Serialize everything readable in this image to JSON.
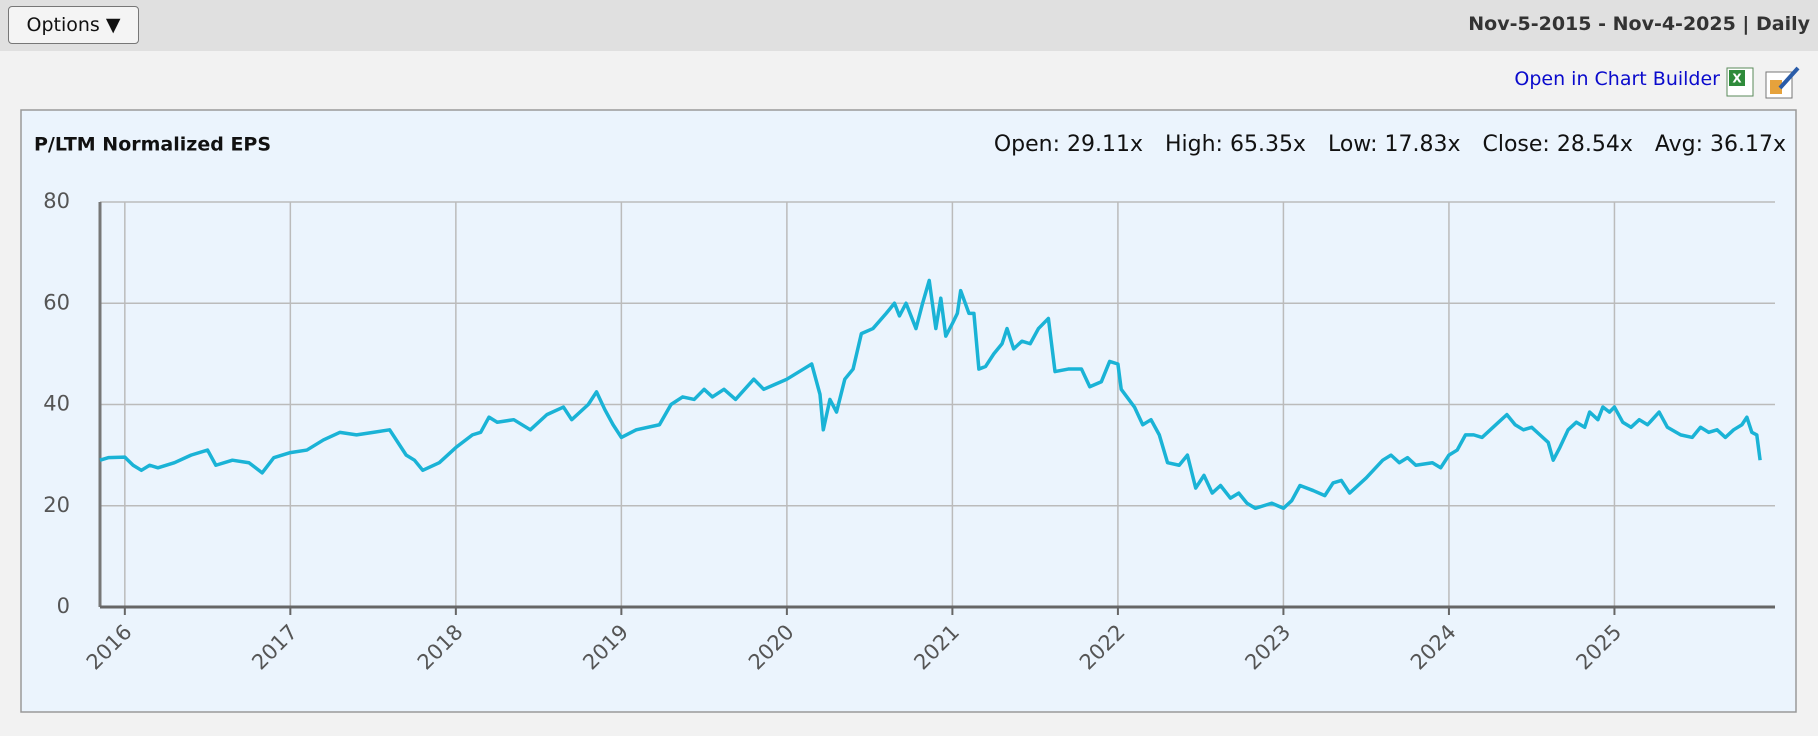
{
  "toolbar": {
    "options": "Options ▼",
    "range": "Nov-5-2015 - Nov-4-2025 | Daily",
    "link": "Open in Chart Builder"
  },
  "chart_data": {
    "type": "line",
    "title": "P/LTM Normalized EPS",
    "stats": [
      "Open: 29.11x",
      "High: 65.35x",
      "Low: 17.83x",
      "Close: 28.54x",
      "Avg: 36.17x"
    ],
    "x": [
      2015.85,
      2015.9,
      2016.0,
      2016.05,
      2016.1,
      2016.15,
      2016.2,
      2016.3,
      2016.4,
      2016.5,
      2016.55,
      2016.65,
      2016.75,
      2016.83,
      2016.9,
      2017.0,
      2017.1,
      2017.2,
      2017.3,
      2017.4,
      2017.5,
      2017.6,
      2017.7,
      2017.75,
      2017.8,
      2017.9,
      2018.0,
      2018.1,
      2018.15,
      2018.2,
      2018.25,
      2018.35,
      2018.45,
      2018.55,
      2018.65,
      2018.7,
      2018.8,
      2018.85,
      2018.9,
      2018.95,
      2019.0,
      2019.09,
      2019.23,
      2019.3,
      2019.37,
      2019.44,
      2019.5,
      2019.55,
      2019.62,
      2019.69,
      2019.8,
      2019.86,
      2019.93,
      2020.0,
      2020.1,
      2020.15,
      2020.2,
      2020.22,
      2020.26,
      2020.3,
      2020.35,
      2020.4,
      2020.45,
      2020.52,
      2020.6,
      2020.65,
      2020.68,
      2020.72,
      2020.78,
      2020.82,
      2020.86,
      2020.9,
      2020.93,
      2020.96,
      2021.0,
      2021.03,
      2021.05,
      2021.1,
      2021.13,
      2021.16,
      2021.2,
      2021.25,
      2021.3,
      2021.33,
      2021.37,
      2021.42,
      2021.47,
      2021.52,
      2021.58,
      2021.62,
      2021.7,
      2021.78,
      2021.83,
      2021.9,
      2021.95,
      2022.0,
      2022.02,
      2022.1,
      2022.15,
      2022.2,
      2022.25,
      2022.3,
      2022.37,
      2022.42,
      2022.47,
      2022.52,
      2022.57,
      2022.62,
      2022.68,
      2022.73,
      2022.78,
      2022.83,
      2022.88,
      2022.93,
      2023.0,
      2023.05,
      2023.1,
      2023.18,
      2023.25,
      2023.3,
      2023.35,
      2023.4,
      2023.5,
      2023.6,
      2023.65,
      2023.7,
      2023.75,
      2023.8,
      2023.9,
      2023.95,
      2024.0,
      2024.05,
      2024.1,
      2024.15,
      2024.2,
      2024.25,
      2024.3,
      2024.35,
      2024.4,
      2024.45,
      2024.5,
      2024.55,
      2024.6,
      2024.63,
      2024.67,
      2024.72,
      2024.77,
      2024.82,
      2024.85,
      2024.9,
      2024.93,
      2024.97,
      2025.0,
      2025.05,
      2025.1,
      2025.15,
      2025.2,
      2025.27,
      2025.32,
      2025.4,
      2025.47,
      2025.52,
      2025.57,
      2025.62,
      2025.67,
      2025.72,
      2025.77,
      2025.8,
      2025.83,
      2025.86,
      2025.88
    ],
    "series": [
      {
        "color": "#1ab3d6",
        "values": [
          29,
          29.5,
          29.6,
          28,
          27,
          28,
          27.5,
          28.5,
          30,
          31,
          28,
          29,
          28.5,
          26.5,
          29.5,
          30.5,
          31,
          33,
          34.5,
          34,
          34.5,
          35,
          30,
          29,
          27,
          28.5,
          31.5,
          34,
          34.5,
          37.5,
          36.5,
          37,
          35,
          38,
          39.5,
          37,
          40,
          42.5,
          39,
          36,
          33.5,
          35,
          36,
          40,
          41.5,
          41,
          43,
          41.5,
          43,
          41,
          45,
          43,
          44,
          45,
          47,
          48,
          42,
          35,
          41,
          38.5,
          45,
          47,
          54,
          55,
          58,
          60,
          57.5,
          60,
          55,
          60,
          64.5,
          55,
          61,
          53.5,
          56,
          58,
          62.5,
          58,
          58,
          47,
          47.5,
          50,
          52,
          55,
          51,
          52.5,
          52,
          55,
          57,
          46.5,
          47,
          47,
          43.5,
          44.5,
          48.5,
          48,
          43,
          39.5,
          36,
          37,
          34,
          28.5,
          28,
          30,
          23.5,
          26,
          22.5,
          24,
          21.5,
          22.5,
          20.5,
          19.5,
          20,
          20.5,
          19.5,
          21,
          24,
          23,
          22,
          24.5,
          25,
          22.5,
          25.5,
          29,
          30,
          28.5,
          29.5,
          28,
          28.5,
          27.5,
          30,
          31,
          34,
          34,
          33.5,
          35,
          36.5,
          38,
          36,
          35,
          35.5,
          34,
          32.5,
          29,
          31.5,
          35,
          36.5,
          35.5,
          38.5,
          37,
          39.5,
          38.5,
          39.5,
          36.5,
          35.5,
          37,
          36,
          38.5,
          35.5,
          34,
          33.5,
          35.5,
          34.5,
          35,
          33.5,
          35,
          36,
          37.5,
          34.5,
          34,
          29
        ]
      }
    ],
    "xlim": [
      2015.85,
      2025.97
    ],
    "xticks": [
      2016,
      2017,
      2018,
      2019,
      2020,
      2021,
      2022,
      2023,
      2024,
      2025
    ],
    "ylim": [
      0,
      80
    ],
    "yticks": [
      0,
      20,
      40,
      60,
      80
    ],
    "grid": true
  }
}
